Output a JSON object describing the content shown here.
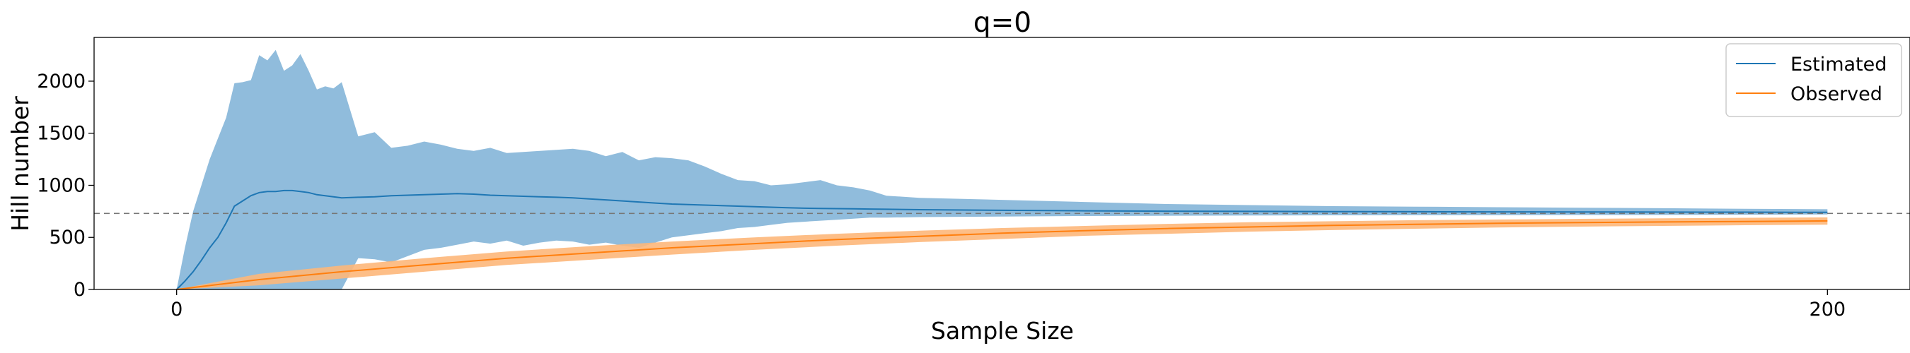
{
  "chart_data": {
    "type": "line",
    "title": "q=0",
    "xlabel": "Sample Size",
    "ylabel": "Hill number",
    "xlim": [
      -10,
      210
    ],
    "ylim": [
      0,
      2420
    ],
    "xticks": [
      0,
      200
    ],
    "yticks": [
      0,
      500,
      1000,
      1500,
      2000
    ],
    "grid": false,
    "legend_position": "top-right",
    "reference_line": {
      "y": 730,
      "style": "dashed",
      "color": "#777777"
    },
    "series": [
      {
        "name": "Estimated",
        "color": "#1f77b4",
        "band_color": "#8ab8da",
        "x": [
          0,
          1,
          2,
          3,
          4,
          5,
          6,
          7,
          8,
          9,
          10,
          11,
          12,
          13,
          14,
          15,
          16,
          17,
          18,
          19,
          20,
          22,
          24,
          26,
          28,
          30,
          32,
          34,
          36,
          38,
          40,
          42,
          44,
          46,
          48,
          50,
          52,
          54,
          56,
          58,
          60,
          62,
          64,
          66,
          68,
          70,
          72,
          74,
          76,
          78,
          80,
          82,
          84,
          86,
          90,
          100,
          110,
          120,
          130,
          140,
          150,
          160,
          170,
          180,
          190,
          200
        ],
        "y": [
          0,
          80,
          170,
          280,
          400,
          500,
          640,
          800,
          850,
          900,
          930,
          940,
          940,
          950,
          950,
          940,
          930,
          910,
          900,
          890,
          880,
          885,
          890,
          900,
          905,
          910,
          915,
          920,
          915,
          905,
          900,
          895,
          890,
          885,
          880,
          870,
          860,
          850,
          840,
          830,
          820,
          815,
          810,
          805,
          800,
          795,
          790,
          785,
          780,
          778,
          776,
          774,
          772,
          770,
          766,
          760,
          755,
          752,
          750,
          748,
          746,
          745,
          744,
          743,
          742,
          740
        ],
        "upper": [
          0,
          400,
          750,
          1000,
          1250,
          1450,
          1650,
          1980,
          1990,
          2010,
          2250,
          2200,
          2300,
          2100,
          2150,
          2260,
          2100,
          1920,
          1950,
          1930,
          1990,
          1470,
          1510,
          1360,
          1380,
          1420,
          1390,
          1350,
          1330,
          1360,
          1310,
          1320,
          1330,
          1340,
          1350,
          1330,
          1280,
          1320,
          1240,
          1270,
          1260,
          1240,
          1180,
          1110,
          1050,
          1040,
          1000,
          1010,
          1030,
          1050,
          1000,
          980,
          950,
          900,
          880,
          860,
          840,
          820,
          810,
          800,
          795,
          790,
          785,
          780,
          775,
          770
        ],
        "lower": [
          0,
          0,
          0,
          0,
          0,
          0,
          0,
          0,
          0,
          0,
          0,
          0,
          0,
          0,
          0,
          0,
          0,
          0,
          0,
          0,
          0,
          300,
          290,
          260,
          320,
          380,
          400,
          430,
          460,
          440,
          470,
          420,
          450,
          470,
          460,
          430,
          450,
          420,
          400,
          450,
          500,
          520,
          540,
          560,
          590,
          600,
          620,
          640,
          650,
          660,
          670,
          680,
          690,
          690,
          695,
          700,
          705,
          708,
          710,
          712,
          713,
          714,
          715,
          716,
          718,
          720
        ]
      },
      {
        "name": "Observed",
        "color": "#ff7f0e",
        "band_color": "#fdb77a",
        "x": [
          0,
          10,
          20,
          30,
          40,
          50,
          60,
          70,
          80,
          90,
          100,
          110,
          120,
          130,
          140,
          150,
          160,
          170,
          180,
          190,
          200
        ],
        "y": [
          0,
          95,
          170,
          235,
          300,
          350,
          400,
          440,
          480,
          510,
          540,
          565,
          585,
          600,
          615,
          625,
          635,
          642,
          648,
          653,
          658
        ],
        "upper": [
          0,
          150,
          230,
          300,
          365,
          415,
          460,
          500,
          535,
          565,
          590,
          610,
          630,
          645,
          655,
          665,
          672,
          678,
          683,
          688,
          692
        ],
        "lower": [
          0,
          40,
          105,
          170,
          235,
          285,
          335,
          380,
          420,
          455,
          485,
          515,
          535,
          555,
          570,
          583,
          595,
          603,
          610,
          617,
          622
        ]
      }
    ]
  }
}
